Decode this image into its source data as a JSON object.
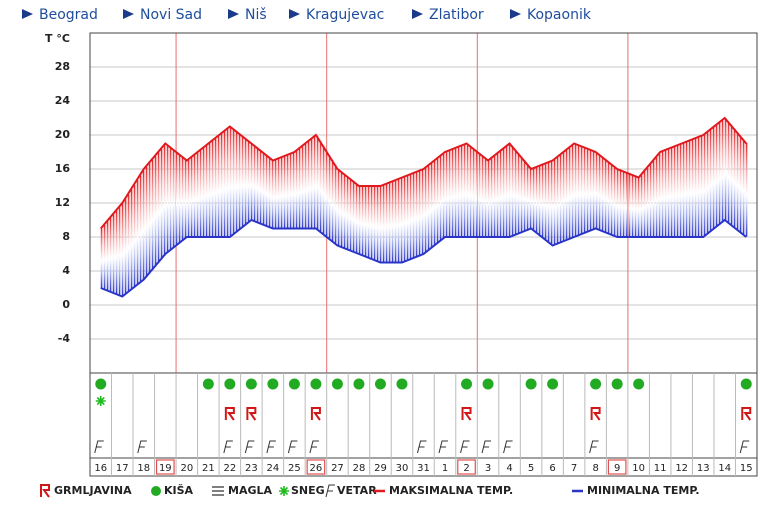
{
  "nav": [
    "Beograd",
    "Novi Sad",
    "Niš",
    "Kragujevac",
    "Zlatibor",
    "Kopaonik"
  ],
  "chart_data": {
    "type": "line",
    "y_label": "T °C",
    "categories": [
      "16",
      "17",
      "18",
      "19",
      "20",
      "21",
      "22",
      "23",
      "24",
      "25",
      "26",
      "27",
      "28",
      "29",
      "30",
      "31",
      "1",
      "2",
      "3",
      "4",
      "5",
      "6",
      "7",
      "8",
      "9",
      "10",
      "11",
      "12",
      "13",
      "14",
      "15"
    ],
    "series": [
      {
        "name": "MAKSIMALNA TEMP.",
        "color": "#e0191e",
        "values": [
          9,
          12,
          16,
          19,
          17,
          19,
          21,
          19,
          17,
          18,
          20,
          16,
          14,
          14,
          15,
          16,
          18,
          19,
          17,
          19,
          16,
          17,
          19,
          18,
          16,
          15,
          18,
          19,
          20,
          22,
          19
        ]
      },
      {
        "name": "MINIMALNA TEMP.",
        "color": "#2a35c8",
        "values": [
          2,
          1,
          3,
          6,
          8,
          8,
          8,
          10,
          9,
          9,
          9,
          7,
          6,
          5,
          5,
          6,
          8,
          8,
          8,
          8,
          9,
          7,
          8,
          9,
          8,
          8,
          8,
          8,
          8,
          10,
          8
        ]
      }
    ],
    "ylim": [
      -8,
      32
    ],
    "yticks": [
      -4,
      0,
      4,
      8,
      12,
      16,
      20,
      24,
      28
    ],
    "grid": true,
    "rain": [
      true,
      false,
      false,
      false,
      false,
      true,
      true,
      true,
      true,
      true,
      true,
      true,
      true,
      true,
      true,
      false,
      false,
      true,
      true,
      false,
      true,
      true,
      false,
      true,
      true,
      true,
      false,
      false,
      false,
      false,
      true
    ],
    "snow": [
      true,
      false,
      false,
      false,
      false,
      false,
      false,
      false,
      false,
      false,
      false,
      false,
      false,
      false,
      false,
      false,
      false,
      false,
      false,
      false,
      false,
      false,
      false,
      false,
      false,
      false,
      false,
      false,
      false,
      false,
      false
    ],
    "thunder": [
      false,
      false,
      false,
      false,
      false,
      false,
      true,
      true,
      false,
      false,
      true,
      false,
      false,
      false,
      false,
      false,
      false,
      true,
      false,
      false,
      false,
      false,
      false,
      true,
      false,
      false,
      false,
      false,
      false,
      false,
      true
    ],
    "wind": [
      true,
      false,
      true,
      false,
      false,
      false,
      true,
      true,
      true,
      true,
      true,
      false,
      false,
      false,
      false,
      true,
      true,
      true,
      true,
      true,
      false,
      false,
      false,
      true,
      false,
      false,
      false,
      false,
      false,
      false,
      true
    ],
    "icon_legend": {
      "thunder": "GRMLJAVINA",
      "rain": "KIŠA",
      "fog": "MAGLA",
      "snow": "SNEG",
      "wind": "VETAR"
    }
  }
}
